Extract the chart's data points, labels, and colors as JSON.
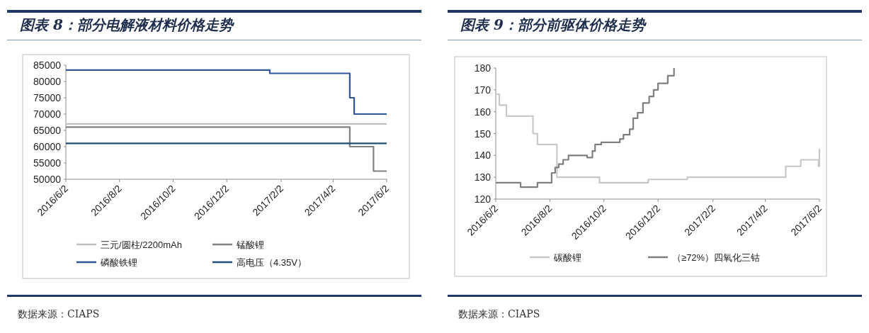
{
  "chart_data": [
    {
      "type": "step",
      "title": "图表 8：部分电解液材料价格走势",
      "annotations": [
        "数据来源：CIAPS"
      ],
      "legend": "bottom",
      "xlim": [
        "2016-06-02",
        "2017-06-02"
      ],
      "xticks": [
        {
          "value": "2016-06-02",
          "label": "2016/6/2"
        },
        {
          "value": "2016-08-02",
          "label": "2016/8/2"
        },
        {
          "value": "2016-10-02",
          "label": "2016/10/2"
        },
        {
          "value": "2016-12-02",
          "label": "2016/12/2"
        },
        {
          "value": "2017-02-02",
          "label": "2017/2/2"
        },
        {
          "value": "2017-04-02",
          "label": "2017/4/2"
        },
        {
          "value": "2017-06-02",
          "label": "2017/6/2"
        }
      ],
      "ylim": [
        50000,
        85000
      ],
      "yticks": [
        50000,
        55000,
        60000,
        65000,
        70000,
        75000,
        80000,
        85000
      ],
      "series": [
        {
          "name": "三元/圆柱/2200mAh",
          "color": "#c0c0c0",
          "x": [
            "2016-06-02",
            "2017-06-02"
          ],
          "values": [
            67000,
            67000
          ]
        },
        {
          "name": "锰酸锂",
          "color": "#808080",
          "x": [
            "2016-06-02",
            "2017-04-21",
            "2017-05-18",
            "2017-06-02"
          ],
          "values": [
            66000,
            60000,
            52500,
            52500
          ]
        },
        {
          "name": "磷酸铁锂",
          "color": "#2f5597",
          "x": [
            "2016-06-02",
            "2017-01-20",
            "2017-04-21",
            "2017-04-26",
            "2017-06-02"
          ],
          "values": [
            83500,
            82500,
            75000,
            70000,
            70000
          ]
        },
        {
          "name": "高电压（4.35V）",
          "color": "#1f4e79",
          "x": [
            "2016-06-02",
            "2017-06-02"
          ],
          "values": [
            61000,
            61000
          ]
        }
      ]
    },
    {
      "type": "step",
      "title": "图表 9：部分前驱体价格走势",
      "annotations": [
        "数据来源：CIAPS"
      ],
      "legend": "bottom",
      "xlim": [
        "2016-06-02",
        "2017-06-02"
      ],
      "xticks": [
        {
          "value": "2016-06-02",
          "label": "2016/6/2"
        },
        {
          "value": "2016-08-02",
          "label": "2016/8/2"
        },
        {
          "value": "2016-10-02",
          "label": "2016/10/2"
        },
        {
          "value": "2016-12-02",
          "label": "2016/12/2"
        },
        {
          "value": "2017-02-02",
          "label": "2017/2/2"
        },
        {
          "value": "2017-04-02",
          "label": "2017/4/2"
        },
        {
          "value": "2017-06-02",
          "label": "2017/6/2"
        }
      ],
      "ylim": [
        120,
        180
      ],
      "yticks": [
        120,
        130,
        140,
        150,
        160,
        170,
        180
      ],
      "series": [
        {
          "name": "碳酸锂",
          "color": "#c8c8c8",
          "x": [
            "2016-06-02",
            "2016-06-06",
            "2016-06-14",
            "2016-07-14",
            "2016-07-19",
            "2016-08-10",
            "2016-09-27",
            "2016-11-21",
            "2017-01-04",
            "2017-04-25",
            "2017-05-12",
            "2017-06-01",
            "2017-06-02"
          ],
          "values": [
            168,
            163,
            158,
            150,
            145,
            130,
            127.5,
            129,
            130,
            135,
            138,
            135,
            143
          ]
        },
        {
          "name": "（≥72%）四氧化三钴",
          "color": "#7f7f7f",
          "x": [
            "2016-06-02",
            "2016-06-30",
            "2016-07-19",
            "2016-08-04",
            "2016-08-08",
            "2016-08-12",
            "2016-08-17",
            "2016-08-23",
            "2016-09-13",
            "2016-09-19",
            "2016-09-22",
            "2016-09-29",
            "2016-10-20",
            "2016-10-24",
            "2016-10-31",
            "2016-11-04",
            "2016-11-09",
            "2016-11-15",
            "2016-11-22",
            "2016-11-27",
            "2016-12-02",
            "2016-12-13",
            "2016-12-20"
          ],
          "values": [
            127.5,
            125.5,
            127.5,
            132,
            134.5,
            136,
            138,
            140,
            139,
            142,
            145,
            146,
            147.5,
            149.5,
            152,
            157,
            159.5,
            164,
            167,
            170,
            173,
            176.5,
            180
          ]
        }
      ]
    }
  ]
}
